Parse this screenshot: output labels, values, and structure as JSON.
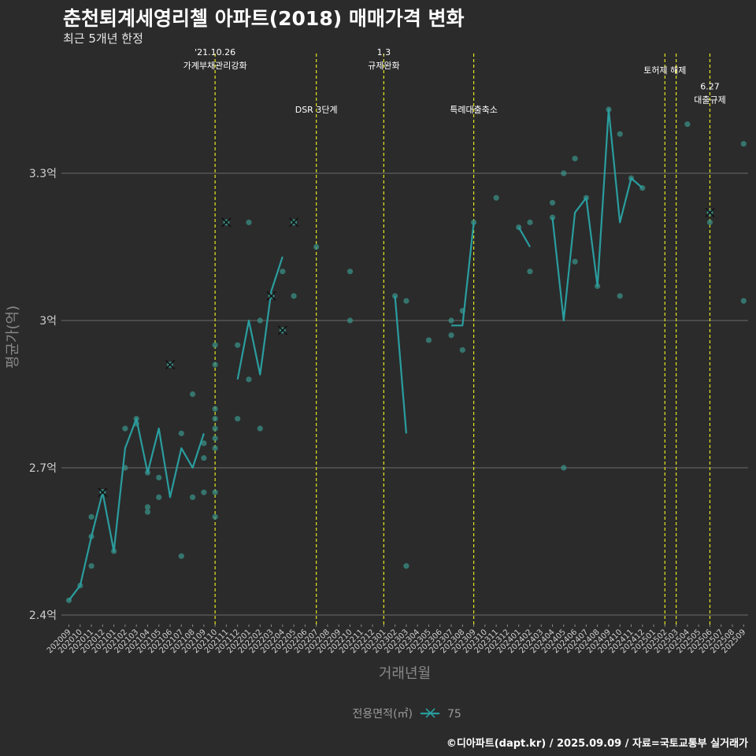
{
  "title": "춘천퇴계세영리첼 아파트(2018) 매매가격 변화",
  "subtitle": "최근 5개년 한정",
  "caption": "©디아파트(dapt.kr) / 2025.09.09 / 자료=국토교통부 실거래가",
  "colors": {
    "background": "#2b2b2b",
    "series": "#2a9d9f",
    "points": "#3a8f86",
    "grid": "#6b6b6b",
    "event_line": "#e5e51f"
  },
  "chart_data": {
    "type": "line",
    "xlabel": "거래년월",
    "ylabel": "평균가(억)",
    "x_start": "2020-09",
    "months": [
      "202009",
      "202010",
      "202011",
      "202012",
      "202101",
      "202102",
      "202103",
      "202104",
      "202105",
      "202106",
      "202107",
      "202108",
      "202109",
      "202110",
      "202111",
      "202112",
      "202201",
      "202202",
      "202203",
      "202204",
      "202205",
      "202206",
      "202207",
      "202208",
      "202209",
      "202210",
      "202211",
      "202212",
      "202301",
      "202302",
      "202303",
      "202304",
      "202305",
      "202306",
      "202307",
      "202308",
      "202309",
      "202310",
      "202311",
      "202312",
      "202401",
      "202402",
      "202403",
      "202404",
      "202405",
      "202406",
      "202407",
      "202408",
      "202409",
      "202410",
      "202411",
      "202412",
      "202501",
      "202502",
      "202503",
      "202504",
      "202505",
      "202506",
      "202507",
      "202508",
      "202509"
    ],
    "y_ticks": [
      {
        "value": 2.4,
        "label": "2.4억"
      },
      {
        "value": 2.7,
        "label": "2.7억"
      },
      {
        "value": 3.0,
        "label": "3억"
      },
      {
        "value": 3.3,
        "label": "3.3억"
      }
    ],
    "ylim": [
      2.38,
      3.63
    ],
    "legend": {
      "title": "전용면적(㎡)",
      "position": "bottom"
    },
    "series": [
      {
        "name": "75",
        "line_segments": [
          [
            [
              1,
              2.43
            ],
            [
              2,
              2.46
            ],
            [
              3,
              2.56
            ],
            [
              4,
              2.65
            ],
            [
              5,
              2.53
            ],
            [
              6,
              2.74
            ],
            [
              7,
              2.8
            ],
            [
              8,
              2.69
            ],
            [
              9,
              2.78
            ],
            [
              10,
              2.64
            ],
            [
              11,
              2.74
            ],
            [
              12,
              2.7
            ],
            [
              13,
              2.77
            ]
          ],
          [
            [
              16,
              2.88
            ],
            [
              17,
              3.0
            ],
            [
              18,
              2.89
            ],
            [
              19,
              3.06
            ],
            [
              20,
              3.13
            ]
          ],
          [
            [
              30,
              3.05
            ],
            [
              31,
              2.77
            ]
          ],
          [
            [
              35,
              2.99
            ],
            [
              36,
              2.99
            ],
            [
              37,
              3.2
            ]
          ],
          [
            [
              41,
              3.19
            ],
            [
              42,
              3.15
            ]
          ],
          [
            [
              44,
              3.21
            ],
            [
              45,
              3.0
            ],
            [
              46,
              3.22
            ],
            [
              47,
              3.25
            ],
            [
              48,
              3.07
            ],
            [
              49,
              3.43
            ],
            [
              50,
              3.2
            ],
            [
              51,
              3.29
            ],
            [
              52,
              3.27
            ]
          ]
        ],
        "x_markers": [
          [
            4,
            2.65
          ],
          [
            10,
            2.91
          ],
          [
            15,
            3.2
          ],
          [
            19,
            3.05
          ],
          [
            20,
            2.98
          ],
          [
            21,
            3.2
          ],
          [
            58,
            3.22
          ]
        ]
      }
    ],
    "points": [
      [
        1,
        2.43
      ],
      [
        2,
        2.46
      ],
      [
        3,
        2.5
      ],
      [
        3,
        2.56
      ],
      [
        3,
        2.6
      ],
      [
        4,
        2.65
      ],
      [
        5,
        2.53
      ],
      [
        6,
        2.7
      ],
      [
        6,
        2.78
      ],
      [
        7,
        2.8
      ],
      [
        7,
        2.79
      ],
      [
        8,
        2.69
      ],
      [
        8,
        2.61
      ],
      [
        8,
        2.62
      ],
      [
        9,
        2.68
      ],
      [
        9,
        2.64
      ],
      [
        10,
        2.91
      ],
      [
        11,
        2.52
      ],
      [
        11,
        2.77
      ],
      [
        12,
        2.64
      ],
      [
        12,
        2.85
      ],
      [
        13,
        2.65
      ],
      [
        13,
        2.75
      ],
      [
        13,
        2.72
      ],
      [
        14,
        2.6
      ],
      [
        14,
        2.65
      ],
      [
        14,
        2.74
      ],
      [
        14,
        2.76
      ],
      [
        14,
        2.78
      ],
      [
        14,
        2.8
      ],
      [
        14,
        2.82
      ],
      [
        14,
        2.91
      ],
      [
        14,
        2.95
      ],
      [
        15,
        3.2
      ],
      [
        16,
        2.95
      ],
      [
        16,
        2.8
      ],
      [
        17,
        3.2
      ],
      [
        17,
        2.88
      ],
      [
        18,
        3.0
      ],
      [
        18,
        2.78
      ],
      [
        19,
        3.05
      ],
      [
        20,
        3.1
      ],
      [
        20,
        2.98
      ],
      [
        21,
        3.05
      ],
      [
        21,
        3.2
      ],
      [
        23,
        3.15
      ],
      [
        26,
        3.0
      ],
      [
        26,
        3.1
      ],
      [
        30,
        3.05
      ],
      [
        31,
        2.5
      ],
      [
        31,
        3.04
      ],
      [
        33,
        2.96
      ],
      [
        35,
        3.0
      ],
      [
        35,
        2.97
      ],
      [
        36,
        2.94
      ],
      [
        36,
        3.02
      ],
      [
        37,
        3.2
      ],
      [
        39,
        3.25
      ],
      [
        41,
        3.19
      ],
      [
        42,
        3.2
      ],
      [
        42,
        3.1
      ],
      [
        44,
        3.24
      ],
      [
        44,
        3.21
      ],
      [
        45,
        3.3
      ],
      [
        45,
        2.7
      ],
      [
        46,
        3.12
      ],
      [
        46,
        3.33
      ],
      [
        47,
        3.25
      ],
      [
        48,
        3.07
      ],
      [
        49,
        3.43
      ],
      [
        50,
        3.38
      ],
      [
        50,
        3.05
      ],
      [
        51,
        3.29
      ],
      [
        52,
        3.27
      ],
      [
        56,
        3.4
      ],
      [
        58,
        3.2
      ],
      [
        58,
        3.22
      ],
      [
        61,
        3.36
      ],
      [
        61,
        3.04
      ]
    ],
    "events": [
      {
        "x": 14,
        "label_lines": [
          "'21.10.26",
          "가계부채관리강화"
        ],
        "label_y": 3.52
      },
      {
        "x": 23,
        "label_lines": [
          "DSR 3단계"
        ],
        "label_y": 3.43
      },
      {
        "x": 29,
        "label_lines": [
          "1.3",
          "규제완화"
        ],
        "label_y": 3.52
      },
      {
        "x": 37,
        "label_lines": [
          "특례대출축소"
        ],
        "label_y": 3.43
      },
      {
        "x": 54,
        "label_lines": [
          "토허제 해제"
        ],
        "label_y": 3.51
      },
      {
        "x": 55,
        "label_lines": [],
        "label_y": 3.51
      },
      {
        "x": 58,
        "label_lines": [
          "6.27",
          "대출규제"
        ],
        "label_y": 3.45
      }
    ]
  }
}
